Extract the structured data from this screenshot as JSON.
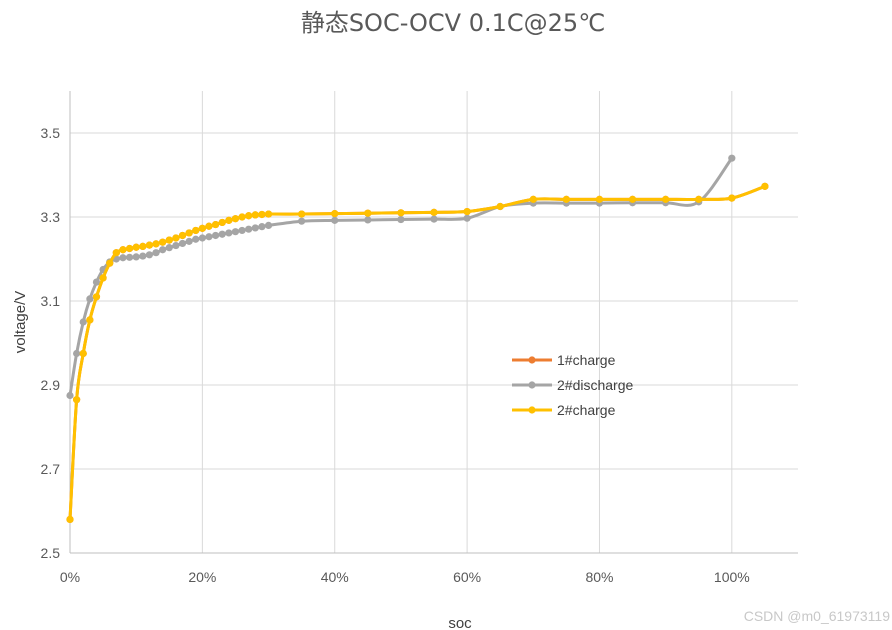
{
  "chart_data": {
    "type": "line",
    "title": "静态SOC-OCV 0.1C@25℃",
    "xlabel": "soc",
    "ylabel": "voltage/V",
    "xlim": [
      0,
      1.1
    ],
    "ylim": [
      2.5,
      3.6
    ],
    "x_ticks": [
      0,
      0.2,
      0.4,
      0.6,
      0.8,
      1.0
    ],
    "x_tick_labels": [
      "0%",
      "20%",
      "40%",
      "60%",
      "80%",
      "100%"
    ],
    "y_ticks": [
      2.5,
      2.7,
      2.9,
      3.1,
      3.3,
      3.5
    ],
    "y_tick_labels": [
      "2.5",
      "2.7",
      "2.9",
      "3.1",
      "3.3",
      "3.5"
    ],
    "grid": true,
    "legend_position": "center-right",
    "series": [
      {
        "name": "1#charge",
        "color": "#ED7D31",
        "x": [
          0,
          0.01,
          0.02,
          0.03,
          0.04,
          0.05,
          0.06,
          0.07,
          0.08,
          0.09,
          0.1,
          0.11,
          0.12,
          0.13,
          0.14,
          0.15,
          0.16,
          0.17,
          0.18,
          0.19,
          0.2,
          0.21,
          0.22,
          0.23,
          0.24,
          0.25,
          0.26,
          0.27,
          0.28,
          0.29,
          0.3,
          0.35,
          0.4,
          0.45,
          0.5,
          0.55,
          0.6,
          0.65,
          0.7,
          0.75,
          0.8,
          0.85,
          0.9,
          0.95,
          1.0,
          1.05
        ],
        "y": [
          2.58,
          2.865,
          2.975,
          3.055,
          3.11,
          3.155,
          3.19,
          3.215,
          3.222,
          3.225,
          3.228,
          3.23,
          3.233,
          3.236,
          3.24,
          3.245,
          3.25,
          3.256,
          3.262,
          3.268,
          3.273,
          3.278,
          3.282,
          3.287,
          3.292,
          3.296,
          3.3,
          3.303,
          3.305,
          3.306,
          3.307,
          3.307,
          3.308,
          3.309,
          3.31,
          3.311,
          3.313,
          3.325,
          3.342,
          3.342,
          3.342,
          3.342,
          3.342,
          3.342,
          3.345,
          3.373
        ]
      },
      {
        "name": "2#discharge",
        "color": "#A5A5A5",
        "x": [
          0,
          0.01,
          0.02,
          0.03,
          0.04,
          0.05,
          0.06,
          0.07,
          0.08,
          0.09,
          0.1,
          0.11,
          0.12,
          0.13,
          0.14,
          0.15,
          0.16,
          0.17,
          0.18,
          0.19,
          0.2,
          0.21,
          0.22,
          0.23,
          0.24,
          0.25,
          0.26,
          0.27,
          0.28,
          0.29,
          0.3,
          0.35,
          0.4,
          0.45,
          0.5,
          0.55,
          0.6,
          0.65,
          0.7,
          0.75,
          0.8,
          0.85,
          0.9,
          0.95,
          1.0
        ],
        "y": [
          2.875,
          2.975,
          3.05,
          3.105,
          3.145,
          3.175,
          3.193,
          3.2,
          3.203,
          3.204,
          3.205,
          3.207,
          3.21,
          3.215,
          3.222,
          3.227,
          3.232,
          3.237,
          3.242,
          3.247,
          3.25,
          3.253,
          3.256,
          3.259,
          3.262,
          3.265,
          3.268,
          3.271,
          3.274,
          3.277,
          3.28,
          3.29,
          3.292,
          3.293,
          3.294,
          3.295,
          3.297,
          3.325,
          3.333,
          3.333,
          3.333,
          3.334,
          3.334,
          3.336,
          3.44
        ]
      },
      {
        "name": "2#charge",
        "color": "#FFC000",
        "x": [
          0,
          0.01,
          0.02,
          0.03,
          0.04,
          0.05,
          0.06,
          0.07,
          0.08,
          0.09,
          0.1,
          0.11,
          0.12,
          0.13,
          0.14,
          0.15,
          0.16,
          0.17,
          0.18,
          0.19,
          0.2,
          0.21,
          0.22,
          0.23,
          0.24,
          0.25,
          0.26,
          0.27,
          0.28,
          0.29,
          0.3,
          0.35,
          0.4,
          0.45,
          0.5,
          0.55,
          0.6,
          0.65,
          0.7,
          0.75,
          0.8,
          0.85,
          0.9,
          0.95,
          1.0,
          1.05
        ],
        "y": [
          2.58,
          2.865,
          2.975,
          3.055,
          3.11,
          3.155,
          3.19,
          3.215,
          3.222,
          3.225,
          3.228,
          3.23,
          3.233,
          3.236,
          3.24,
          3.245,
          3.25,
          3.256,
          3.262,
          3.268,
          3.273,
          3.278,
          3.282,
          3.287,
          3.292,
          3.296,
          3.3,
          3.303,
          3.305,
          3.306,
          3.307,
          3.307,
          3.308,
          3.309,
          3.31,
          3.311,
          3.313,
          3.325,
          3.342,
          3.342,
          3.342,
          3.342,
          3.342,
          3.342,
          3.345,
          3.373
        ]
      }
    ]
  },
  "watermark": "CSDN @m0_61973119"
}
